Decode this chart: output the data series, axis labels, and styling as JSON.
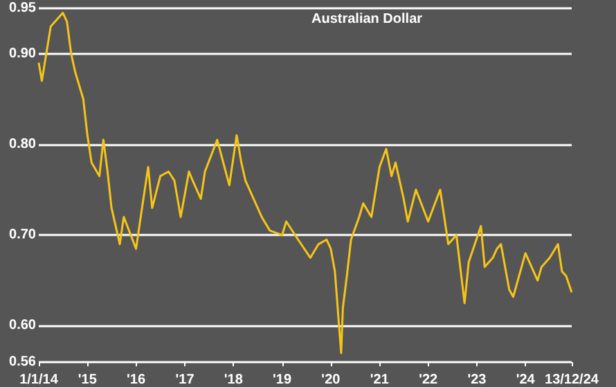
{
  "chart_data": {
    "type": "line",
    "title": "Australian Dollar",
    "x": [
      "2014-01-01",
      "2014-01-24",
      "2014-04",
      "2014-07",
      "2014-08",
      "2014-09",
      "2014-10",
      "2014-12",
      "2015-01",
      "2015-02",
      "2015-04",
      "2015-05",
      "2015-06",
      "2015-07",
      "2015-09",
      "2015-10",
      "2016-01",
      "2016-02-15",
      "2016-04",
      "2016-05",
      "2016-07",
      "2016-09",
      "2016-10-15",
      "2016-12",
      "2017-02",
      "2017-03",
      "2017-05",
      "2017-06",
      "2017-09",
      "2017-12",
      "2018-01-25",
      "2018-03",
      "2018-04",
      "2018-06",
      "2018-08",
      "2018-10",
      "2019-01",
      "2019-02",
      "2019-05",
      "2019-08",
      "2019-10",
      "2019-12",
      "2020-01",
      "2020-02",
      "2020-03-19",
      "2020-04",
      "2020-05",
      "2020-06",
      "2020-08",
      "2020-09",
      "2020-11",
      "2021-01",
      "2021-02-20",
      "2021-04",
      "2021-05",
      "2021-07",
      "2021-08",
      "2021-10",
      "2022-01",
      "2022-04",
      "2022-06",
      "2022-08",
      "2022-10",
      "2022-11",
      "2023-02",
      "2023-03",
      "2023-05",
      "2023-06",
      "2023-07",
      "2023-09",
      "2023-10",
      "2024-01",
      "2024-04",
      "2024-05",
      "2024-07",
      "2024-09",
      "2024-10",
      "2024-11",
      "2024-12-13"
    ],
    "series": [
      {
        "color": "#f5c518",
        "values": [
          0.89,
          0.87,
          0.93,
          0.945,
          0.935,
          0.9,
          0.88,
          0.85,
          0.81,
          0.78,
          0.765,
          0.805,
          0.77,
          0.73,
          0.69,
          0.72,
          0.685,
          0.73,
          0.775,
          0.73,
          0.765,
          0.77,
          0.76,
          0.72,
          0.77,
          0.76,
          0.74,
          0.77,
          0.805,
          0.755,
          0.81,
          0.78,
          0.76,
          0.74,
          0.72,
          0.705,
          0.7,
          0.715,
          0.695,
          0.675,
          0.69,
          0.695,
          0.685,
          0.66,
          0.57,
          0.62,
          0.655,
          0.695,
          0.72,
          0.735,
          0.72,
          0.775,
          0.795,
          0.765,
          0.78,
          0.74,
          0.715,
          0.75,
          0.715,
          0.75,
          0.69,
          0.7,
          0.625,
          0.67,
          0.71,
          0.665,
          0.675,
          0.685,
          0.69,
          0.64,
          0.632,
          0.68,
          0.65,
          0.665,
          0.675,
          0.69,
          0.66,
          0.655,
          0.637
        ]
      }
    ],
    "xlim": [
      "2014-01-01",
      "2024-12-13"
    ],
    "xticks": [
      {
        "value": "2014-01-01",
        "label": "1/1/14"
      },
      {
        "value": "2015-01-01",
        "label": "'15"
      },
      {
        "value": "2016-01-01",
        "label": "'16"
      },
      {
        "value": "2017-01-01",
        "label": "'17"
      },
      {
        "value": "2018-01-01",
        "label": "'18"
      },
      {
        "value": "2019-01-01",
        "label": "'19"
      },
      {
        "value": "2020-01-01",
        "label": "'20"
      },
      {
        "value": "2021-01-01",
        "label": "'21"
      },
      {
        "value": "2022-01-01",
        "label": "'22"
      },
      {
        "value": "2023-01-01",
        "label": "'23"
      },
      {
        "value": "2024-01-01",
        "label": "'24"
      },
      {
        "value": "2024-12-13",
        "label": "13/12/24"
      }
    ],
    "ylim": [
      0.56,
      0.95
    ],
    "yticks": [
      0.56,
      {
        "value": 0.6,
        "label": "0.60"
      },
      {
        "value": 0.7,
        "label": "0.70"
      },
      {
        "value": 0.8,
        "label": "0.80"
      },
      {
        "value": 0.9,
        "label": "0.90"
      },
      0.95
    ],
    "grid": "y",
    "marker": "none",
    "line_style": "solid"
  }
}
